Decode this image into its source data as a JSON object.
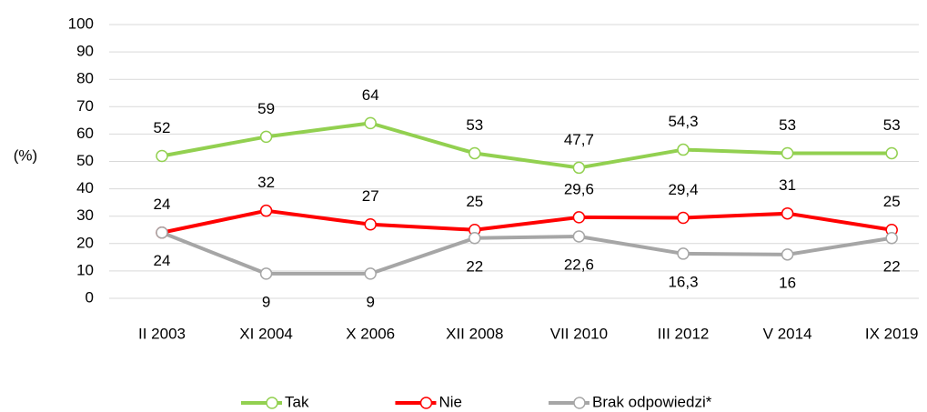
{
  "chart_data": {
    "type": "line",
    "y_label": "(%)",
    "categories": [
      "II 2003",
      "XI 2004",
      "X 2006",
      "XII 2008",
      "VII 2010",
      "III 2012",
      "V 2014",
      "IX 2019"
    ],
    "series": [
      {
        "name": "Tak",
        "color": "#92d050",
        "values": [
          52,
          59,
          64,
          53,
          47.7,
          54.3,
          53,
          53
        ],
        "value_labels": [
          "52",
          "59",
          "64",
          "53",
          "47,7",
          "54,3",
          "53",
          "53"
        ],
        "label_position": "above"
      },
      {
        "name": "Nie",
        "color": "#ff0000",
        "values": [
          24,
          32,
          27,
          25,
          29.6,
          29.4,
          31,
          25
        ],
        "value_labels": [
          "24",
          "32",
          "27",
          "25",
          "29,6",
          "29,4",
          "31",
          "25"
        ],
        "label_position": "above"
      },
      {
        "name": "Brak odpowiedzi*",
        "color": "#a6a6a6",
        "values": [
          24,
          9,
          9,
          22,
          22.6,
          16.3,
          16,
          22
        ],
        "value_labels": [
          "24",
          "9",
          "9",
          "22",
          "22,6",
          "16,3",
          "16",
          "22"
        ],
        "label_position": "below"
      }
    ],
    "ylim": [
      0,
      100
    ],
    "yticks": [
      0,
      10,
      20,
      30,
      40,
      50,
      60,
      70,
      80,
      90,
      100
    ],
    "grid": true,
    "legend": "bottom"
  }
}
